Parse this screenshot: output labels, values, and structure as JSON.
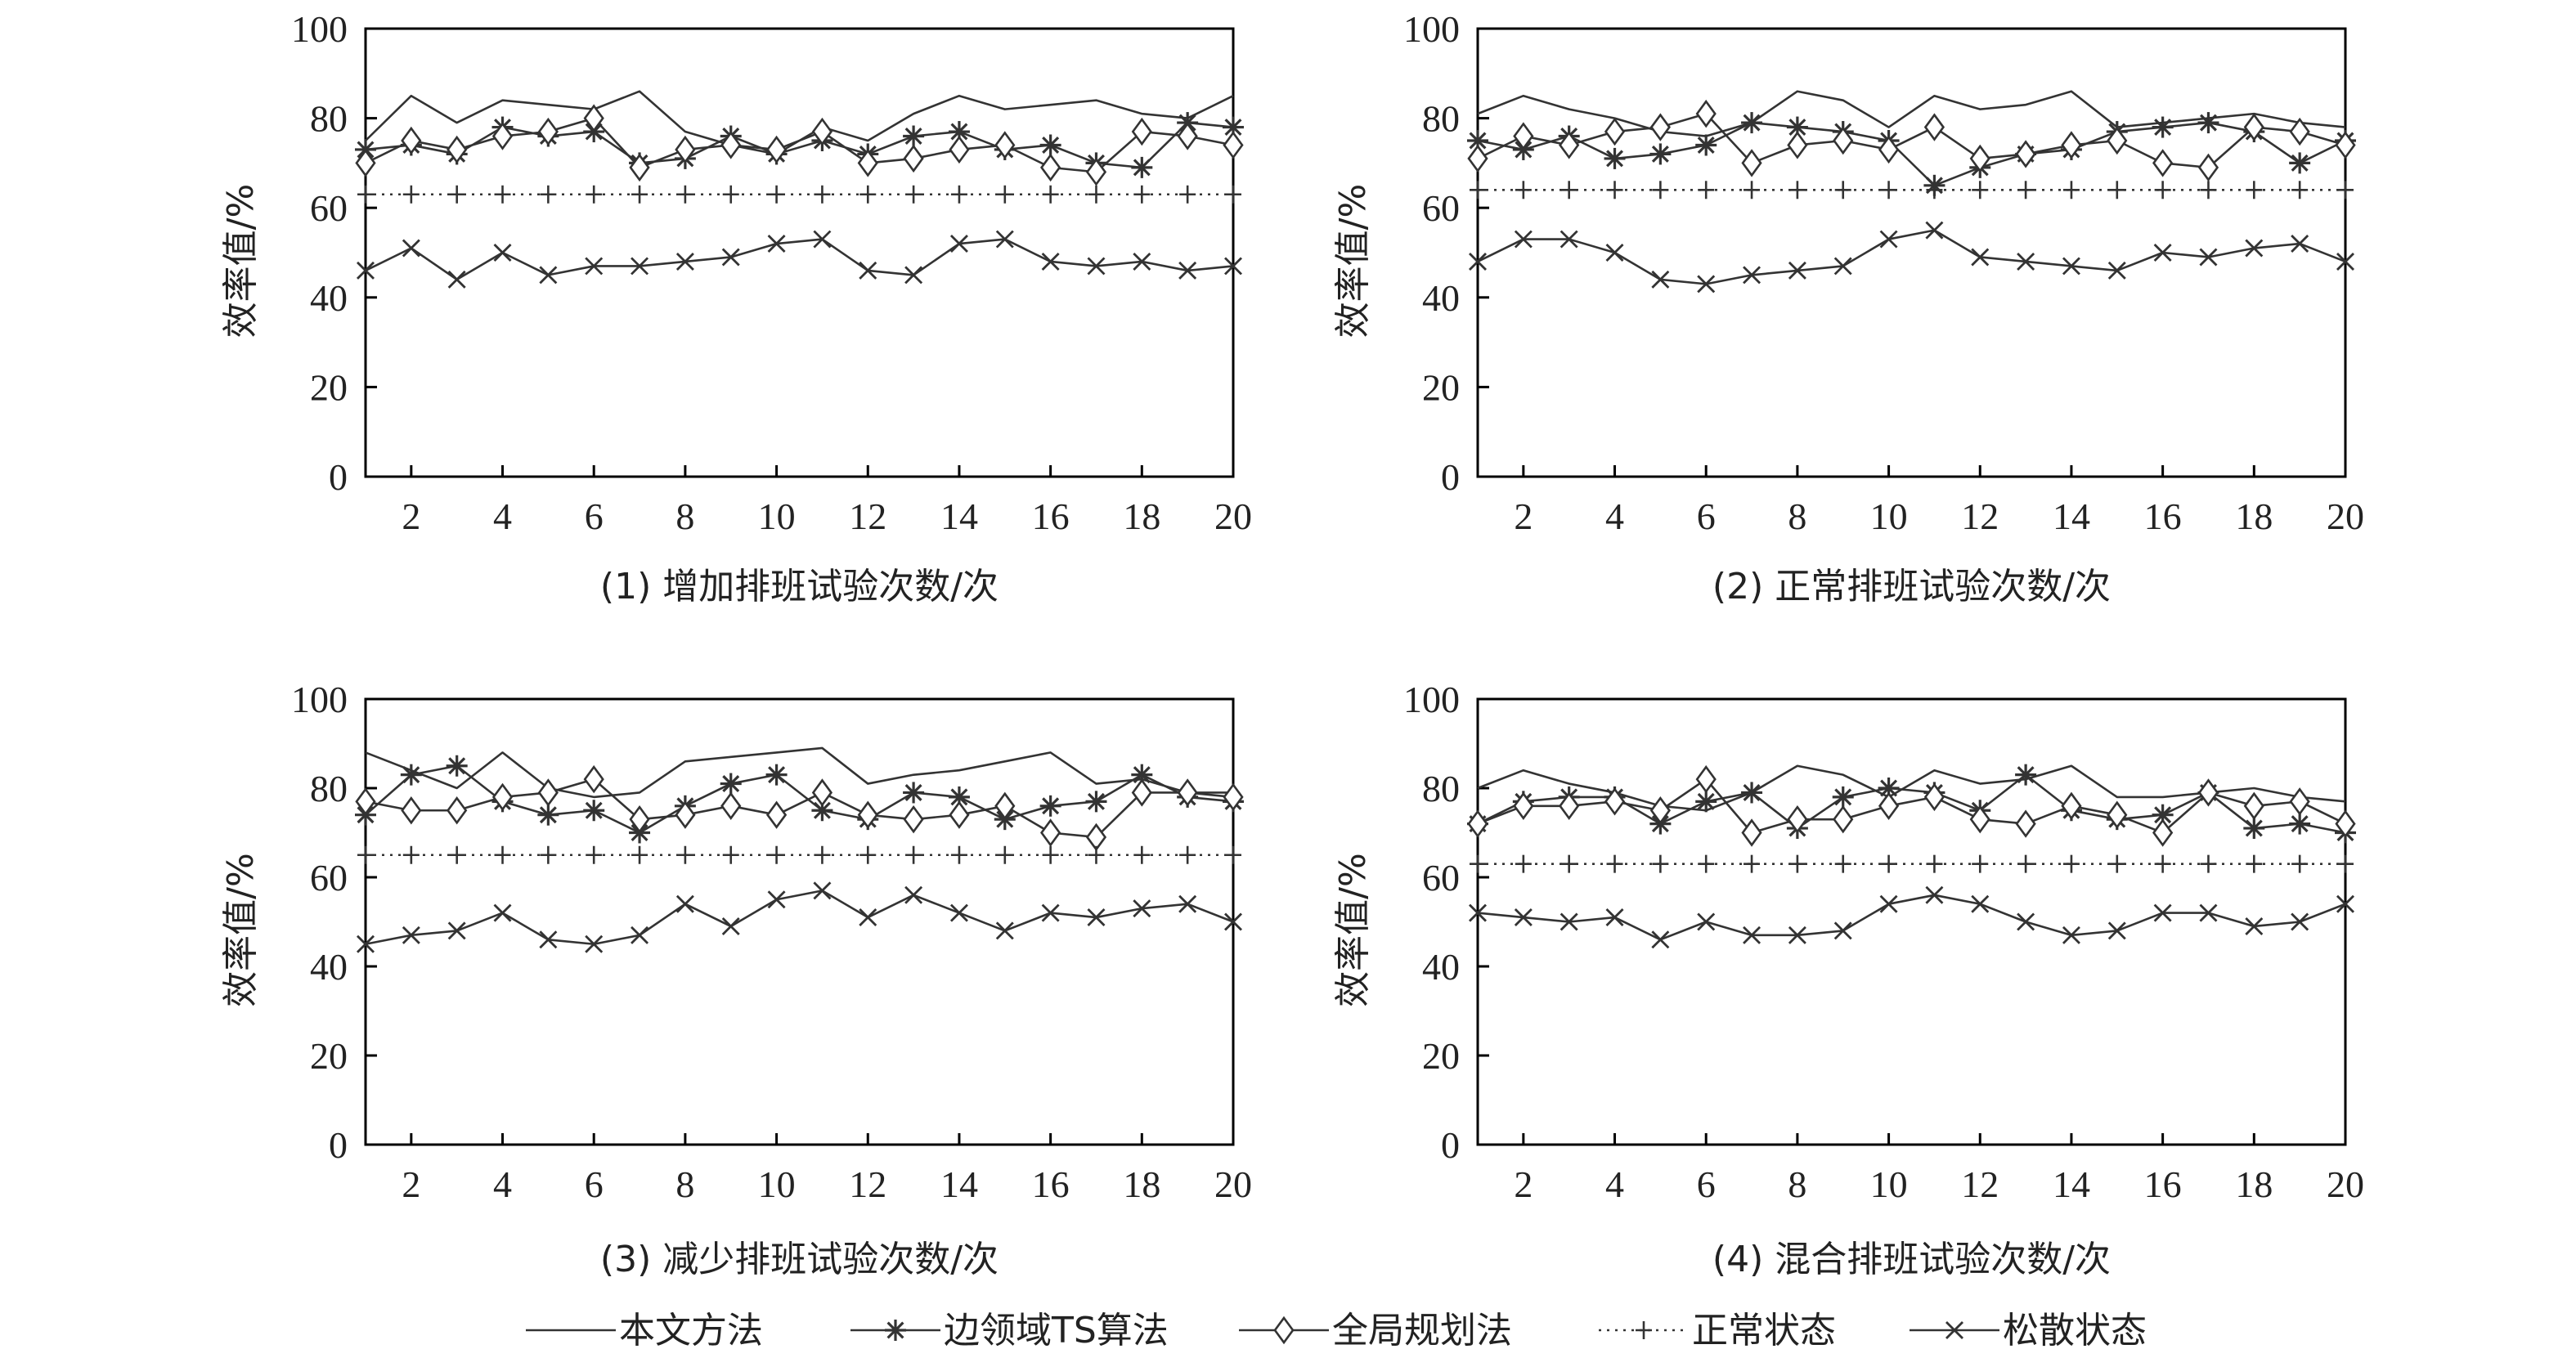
{
  "legend": [
    {
      "key": "bw",
      "label": "本文方法",
      "marker": "none",
      "dash": "solid"
    },
    {
      "key": "ts",
      "label": "边领域TS算法",
      "marker": "star",
      "dash": "solid"
    },
    {
      "key": "qj",
      "label": "全局规划法",
      "marker": "diamond",
      "dash": "solid"
    },
    {
      "key": "zc",
      "label": "正常状态",
      "marker": "plus",
      "dash": "dotted"
    },
    {
      "key": "ss",
      "label": "松散状态",
      "marker": "x",
      "dash": "solid"
    }
  ],
  "colors": {
    "line": "#333333",
    "axis": "#000000",
    "text": "#222222"
  },
  "chart_data": [
    {
      "type": "line",
      "title": "(1) 增加排班试验次数/次",
      "xlabel": "(1) 增加排班试验次数/次",
      "ylabel": "效率值/%",
      "x": [
        1,
        2,
        3,
        4,
        5,
        6,
        7,
        8,
        9,
        10,
        11,
        12,
        13,
        14,
        15,
        16,
        17,
        18,
        19,
        20
      ],
      "xticks": [
        2,
        4,
        6,
        8,
        10,
        12,
        14,
        16,
        18,
        20
      ],
      "yticks": [
        0,
        20,
        40,
        60,
        80,
        100
      ],
      "xlim": [
        1,
        20
      ],
      "ylim": [
        0,
        100
      ],
      "series": [
        {
          "key": "bw",
          "name": "本文方法",
          "values": [
            75,
            85,
            79,
            84,
            83,
            82,
            86,
            77,
            74,
            72,
            78,
            75,
            81,
            85,
            82,
            83,
            84,
            81,
            80,
            85
          ]
        },
        {
          "key": "ts",
          "name": "边领域TS算法",
          "values": [
            73,
            74,
            72,
            78,
            76,
            77,
            70,
            71,
            76,
            72,
            75,
            72,
            76,
            77,
            73,
            74,
            70,
            69,
            79,
            78
          ]
        },
        {
          "key": "qj",
          "name": "全局规划法",
          "values": [
            70,
            75,
            73,
            76,
            77,
            80,
            69,
            73,
            74,
            73,
            77,
            70,
            71,
            73,
            74,
            69,
            68,
            77,
            76,
            74
          ]
        },
        {
          "key": "zc",
          "name": "正常状态",
          "values": [
            63,
            63,
            63,
            63,
            63,
            63,
            63,
            63,
            63,
            63,
            63,
            63,
            63,
            63,
            63,
            63,
            63,
            63,
            63,
            63
          ]
        },
        {
          "key": "ss",
          "name": "松散状态",
          "values": [
            46,
            51,
            44,
            50,
            45,
            47,
            47,
            48,
            49,
            52,
            53,
            46,
            45,
            52,
            53,
            48,
            47,
            48,
            46,
            47
          ]
        }
      ]
    },
    {
      "type": "line",
      "title": "(2) 正常排班试验次数/次",
      "xlabel": "(2) 正常排班试验次数/次",
      "ylabel": "效率值/%",
      "x": [
        1,
        2,
        3,
        4,
        5,
        6,
        7,
        8,
        9,
        10,
        11,
        12,
        13,
        14,
        15,
        16,
        17,
        18,
        19,
        20
      ],
      "xticks": [
        2,
        4,
        6,
        8,
        10,
        12,
        14,
        16,
        18,
        20
      ],
      "yticks": [
        0,
        20,
        40,
        60,
        80,
        100
      ],
      "xlim": [
        1,
        20
      ],
      "ylim": [
        0,
        100
      ],
      "series": [
        {
          "key": "bw",
          "name": "本文方法",
          "values": [
            81,
            85,
            82,
            80,
            77,
            76,
            79,
            86,
            84,
            78,
            85,
            82,
            83,
            86,
            78,
            79,
            80,
            81,
            79,
            78
          ]
        },
        {
          "key": "ts",
          "name": "边领域TS算法",
          "values": [
            75,
            73,
            76,
            71,
            72,
            74,
            79,
            78,
            77,
            75,
            65,
            69,
            72,
            73,
            77,
            78,
            79,
            77,
            70,
            75
          ]
        },
        {
          "key": "qj",
          "name": "全局规划法",
          "values": [
            71,
            76,
            74,
            77,
            78,
            81,
            70,
            74,
            75,
            73,
            78,
            71,
            72,
            74,
            75,
            70,
            69,
            78,
            77,
            74
          ]
        },
        {
          "key": "zc",
          "name": "正常状态",
          "values": [
            64,
            64,
            64,
            64,
            64,
            64,
            64,
            64,
            64,
            64,
            64,
            64,
            64,
            64,
            64,
            64,
            64,
            64,
            64,
            64
          ]
        },
        {
          "key": "ss",
          "name": "松散状态",
          "values": [
            48,
            53,
            53,
            50,
            44,
            43,
            45,
            46,
            47,
            53,
            55,
            49,
            48,
            47,
            46,
            50,
            49,
            51,
            52,
            48
          ]
        }
      ]
    },
    {
      "type": "line",
      "title": "(3) 减少排班试验次数/次",
      "xlabel": "(3) 减少排班试验次数/次",
      "ylabel": "效率值/%",
      "x": [
        1,
        2,
        3,
        4,
        5,
        6,
        7,
        8,
        9,
        10,
        11,
        12,
        13,
        14,
        15,
        16,
        17,
        18,
        19,
        20
      ],
      "xticks": [
        2,
        4,
        6,
        8,
        10,
        12,
        14,
        16,
        18,
        20
      ],
      "yticks": [
        0,
        20,
        40,
        60,
        80,
        100
      ],
      "xlim": [
        1,
        20
      ],
      "ylim": [
        0,
        100
      ],
      "series": [
        {
          "key": "bw",
          "name": "本文方法",
          "values": [
            88,
            84,
            80,
            88,
            80,
            78,
            79,
            86,
            87,
            88,
            89,
            81,
            83,
            84,
            86,
            88,
            81,
            82,
            79,
            79
          ]
        },
        {
          "key": "ts",
          "name": "边领域TS算法",
          "values": [
            74,
            83,
            85,
            77,
            74,
            75,
            70,
            76,
            81,
            83,
            75,
            73,
            79,
            78,
            73,
            76,
            77,
            83,
            78,
            77
          ]
        },
        {
          "key": "qj",
          "name": "全局规划法",
          "values": [
            77,
            75,
            75,
            78,
            79,
            82,
            73,
            74,
            76,
            74,
            79,
            74,
            73,
            74,
            76,
            70,
            69,
            79,
            79,
            78
          ]
        },
        {
          "key": "zc",
          "name": "正常状态",
          "values": [
            65,
            65,
            65,
            65,
            65,
            65,
            65,
            65,
            65,
            65,
            65,
            65,
            65,
            65,
            65,
            65,
            65,
            65,
            65,
            65
          ]
        },
        {
          "key": "ss",
          "name": "松散状态",
          "values": [
            45,
            47,
            48,
            52,
            46,
            45,
            47,
            54,
            49,
            55,
            57,
            51,
            56,
            52,
            48,
            52,
            51,
            53,
            54,
            50
          ]
        }
      ]
    },
    {
      "type": "line",
      "title": "(4) 混合排班试验次数/次",
      "xlabel": "(4) 混合排班试验次数/次",
      "ylabel": "效率值/%",
      "x": [
        1,
        2,
        3,
        4,
        5,
        6,
        7,
        8,
        9,
        10,
        11,
        12,
        13,
        14,
        15,
        16,
        17,
        18,
        19,
        20
      ],
      "xticks": [
        2,
        4,
        6,
        8,
        10,
        12,
        14,
        16,
        18,
        20
      ],
      "yticks": [
        0,
        20,
        40,
        60,
        80,
        100
      ],
      "xlim": [
        1,
        20
      ],
      "ylim": [
        0,
        100
      ],
      "series": [
        {
          "key": "bw",
          "name": "本文方法",
          "values": [
            80,
            84,
            81,
            79,
            76,
            75,
            79,
            85,
            83,
            78,
            84,
            81,
            82,
            85,
            78,
            78,
            79,
            80,
            78,
            77
          ]
        },
        {
          "key": "ts",
          "name": "边领域TS算法",
          "values": [
            72,
            77,
            78,
            78,
            72,
            77,
            79,
            71,
            78,
            80,
            79,
            75,
            83,
            75,
            73,
            74,
            79,
            71,
            72,
            70
          ]
        },
        {
          "key": "qj",
          "name": "全局规划法",
          "values": [
            72,
            76,
            76,
            77,
            75,
            82,
            70,
            73,
            73,
            76,
            78,
            73,
            72,
            76,
            74,
            70,
            79,
            76,
            77,
            72
          ]
        },
        {
          "key": "zc",
          "name": "正常状态",
          "values": [
            63,
            63,
            63,
            63,
            63,
            63,
            63,
            63,
            63,
            63,
            63,
            63,
            63,
            63,
            63,
            63,
            63,
            63,
            63,
            63
          ]
        },
        {
          "key": "ss",
          "name": "松散状态",
          "values": [
            52,
            51,
            50,
            51,
            46,
            50,
            47,
            47,
            48,
            54,
            56,
            54,
            50,
            47,
            48,
            52,
            52,
            49,
            50,
            54
          ]
        }
      ]
    }
  ]
}
